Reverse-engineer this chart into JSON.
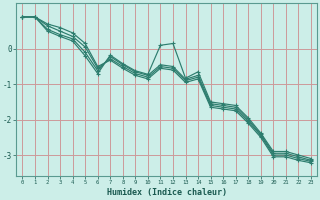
{
  "xlabel": "Humidex (Indice chaleur)",
  "bg_color": "#cceee8",
  "grid_color": "#b0b0b0",
  "line_color": "#2d7d6e",
  "xlim": [
    -0.5,
    23.5
  ],
  "ylim": [
    -3.6,
    1.3
  ],
  "yticks": [
    0,
    -1,
    -2,
    -3
  ],
  "xticks": [
    0,
    1,
    2,
    3,
    4,
    5,
    6,
    7,
    8,
    9,
    10,
    11,
    12,
    13,
    14,
    15,
    16,
    17,
    18,
    19,
    20,
    21,
    22,
    23
  ],
  "lines": [
    [
      0.9,
      0.9,
      0.7,
      0.6,
      0.45,
      0.15,
      -0.5,
      -0.32,
      -0.55,
      -0.75,
      -0.85,
      -0.55,
      -0.6,
      -0.95,
      -0.85,
      -1.65,
      -1.7,
      -1.75,
      -2.1,
      -2.5,
      -3.05,
      -3.05,
      -3.15,
      -3.22
    ],
    [
      0.9,
      0.9,
      0.65,
      0.5,
      0.35,
      0.05,
      -0.55,
      -0.28,
      -0.5,
      -0.7,
      -0.8,
      -0.5,
      -0.55,
      -0.9,
      -0.8,
      -1.6,
      -1.65,
      -1.7,
      -2.05,
      -2.45,
      -3.0,
      -3.0,
      -3.1,
      -3.18
    ],
    [
      0.9,
      0.9,
      0.55,
      0.4,
      0.28,
      -0.1,
      -0.62,
      -0.22,
      -0.45,
      -0.65,
      -0.75,
      -0.45,
      -0.5,
      -0.86,
      -0.75,
      -1.55,
      -1.6,
      -1.65,
      -2.0,
      -2.42,
      -2.95,
      -2.95,
      -3.05,
      -3.15
    ],
    [
      0.9,
      0.9,
      0.5,
      0.35,
      0.22,
      -0.2,
      -0.7,
      -0.18,
      -0.42,
      -0.62,
      -0.72,
      0.1,
      0.15,
      -0.83,
      -0.65,
      -1.5,
      -1.55,
      -1.6,
      -1.95,
      -2.38,
      -2.9,
      -2.9,
      -3.0,
      -3.1
    ]
  ]
}
